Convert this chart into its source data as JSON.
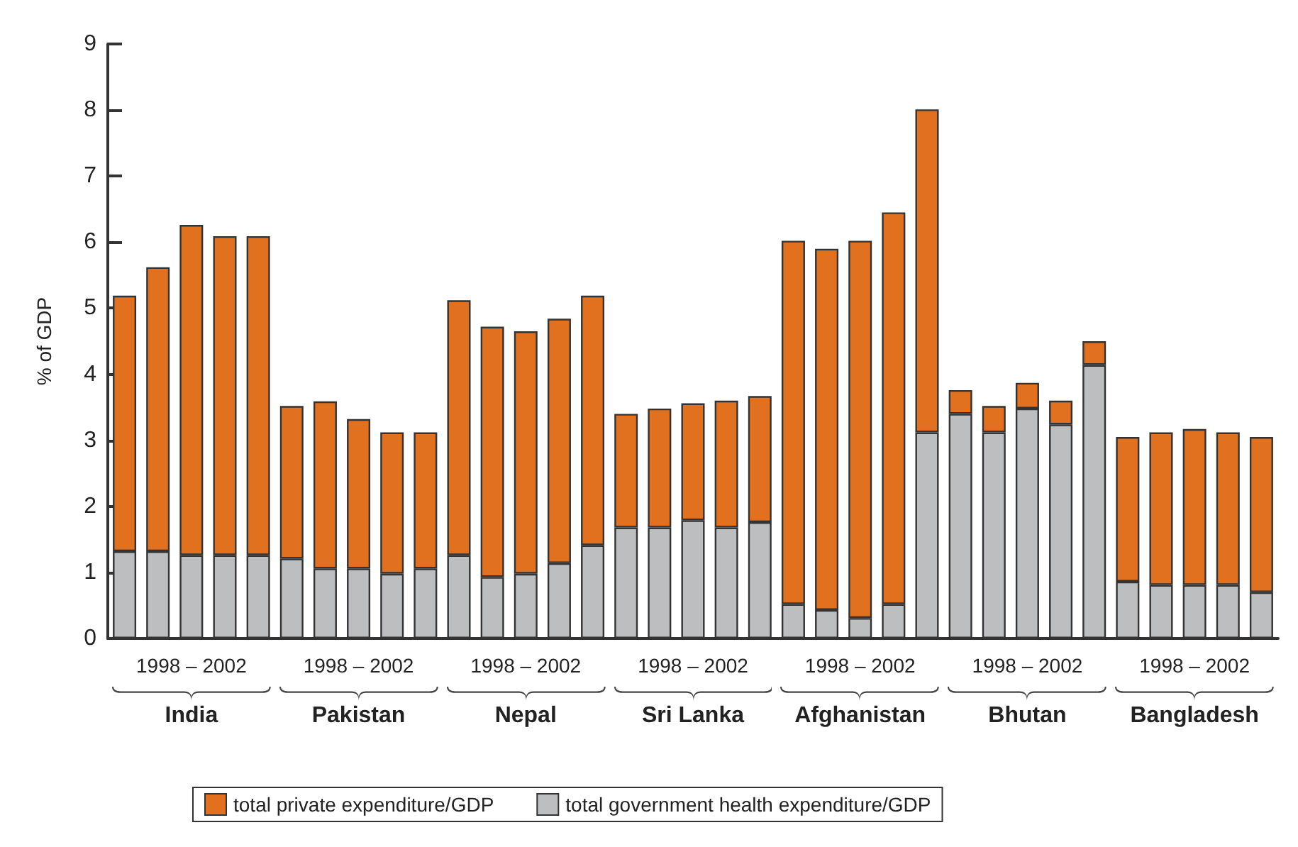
{
  "chart_data": {
    "type": "bar",
    "stacked": true,
    "ylabel": "% of GDP",
    "ylim": [
      0,
      9
    ],
    "yticks": [
      0,
      1,
      2,
      3,
      4,
      5,
      6,
      7,
      8,
      9
    ],
    "grid": false,
    "legend": "bottom",
    "categories": [
      null,
      null,
      "1998 – 2002",
      null,
      null,
      null,
      null,
      "1998 – 2002",
      null,
      null,
      null,
      null,
      "1998 – 2002",
      null,
      null,
      null,
      null,
      "1998 – 2002",
      null,
      null,
      null,
      null,
      "1998 – 2002",
      null,
      null,
      null,
      null,
      "1998 – 2002",
      null,
      null,
      null,
      null,
      "1998 – 2002",
      null,
      null
    ],
    "annotations": [
      "India",
      "Pakistan",
      "Nepal",
      "Sri Lanka",
      "Afghanistan",
      "Bhutan",
      "Bangladesh"
    ],
    "series": [
      {
        "name": "total government health expenditure/GDP",
        "color": "#bdbec0",
        "values": [
          1.32,
          1.32,
          1.26,
          1.26,
          1.26,
          1.21,
          1.06,
          1.06,
          0.98,
          1.06,
          1.26,
          0.93,
          0.98,
          1.14,
          1.41,
          1.68,
          1.68,
          1.79,
          1.68,
          1.76,
          0.52,
          0.43,
          0.31,
          0.52,
          3.12,
          3.4,
          3.12,
          3.48,
          3.24,
          4.14,
          0.86,
          0.81,
          0.81,
          0.81,
          0.7
        ]
      },
      {
        "name": "total private expenditure/GDP",
        "color": "#e2711f",
        "values": [
          3.87,
          4.3,
          5.0,
          4.83,
          4.83,
          2.31,
          2.53,
          2.26,
          2.14,
          2.06,
          3.86,
          3.79,
          3.67,
          3.7,
          3.78,
          1.72,
          1.8,
          1.77,
          1.92,
          1.91,
          5.5,
          5.47,
          5.71,
          5.93,
          4.89,
          0.36,
          0.4,
          0.39,
          0.36,
          0.36,
          2.19,
          2.31,
          2.36,
          2.31,
          2.35
        ]
      }
    ]
  }
}
